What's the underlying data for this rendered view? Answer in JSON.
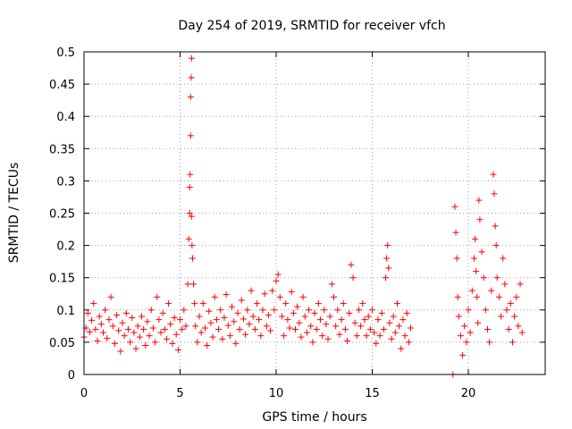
{
  "chart_data": {
    "type": "scatter",
    "title": "Day 254 of 2019, SRMTID for receiver vfch",
    "xlabel": "GPS time / hours",
    "ylabel": "SRMTID / TECUs",
    "xlim": [
      0,
      24
    ],
    "ylim": [
      0,
      0.5
    ],
    "xticks": [
      0,
      5,
      10,
      15,
      20
    ],
    "yticks": [
      0,
      0.05,
      0.1,
      0.15,
      0.2,
      0.25,
      0.3,
      0.35,
      0.4,
      0.45,
      0.5
    ],
    "xtick_labels": [
      "0",
      "5",
      "10",
      "15",
      "20"
    ],
    "ytick_labels": [
      "0",
      "0.05",
      "0.1",
      "0.15",
      "0.2",
      "0.25",
      "0.3",
      "0.35",
      "0.4",
      "0.45",
      "0.5"
    ],
    "grid": true,
    "marker": "+",
    "color": "#ff0000",
    "series": [
      {
        "name": "SRMTID",
        "points": [
          [
            0.0,
            0.058
          ],
          [
            0.1,
            0.072
          ],
          [
            0.2,
            0.095
          ],
          [
            0.3,
            0.066
          ],
          [
            0.4,
            0.084
          ],
          [
            0.5,
            0.11
          ],
          [
            0.6,
            0.07
          ],
          [
            0.7,
            0.052
          ],
          [
            0.8,
            0.09
          ],
          [
            0.9,
            0.078
          ],
          [
            1.0,
            0.065
          ],
          [
            1.1,
            0.1
          ],
          [
            1.2,
            0.056
          ],
          [
            1.3,
            0.085
          ],
          [
            1.4,
            0.12
          ],
          [
            1.5,
            0.075
          ],
          [
            1.6,
            0.048
          ],
          [
            1.7,
            0.092
          ],
          [
            1.8,
            0.068
          ],
          [
            1.9,
            0.036
          ],
          [
            2.0,
            0.08
          ],
          [
            2.1,
            0.06
          ],
          [
            2.2,
            0.095
          ],
          [
            2.3,
            0.07
          ],
          [
            2.4,
            0.05
          ],
          [
            2.5,
            0.088
          ],
          [
            2.6,
            0.065
          ],
          [
            2.7,
            0.04
          ],
          [
            2.8,
            0.075
          ],
          [
            2.9,
            0.058
          ],
          [
            3.0,
            0.09
          ],
          [
            3.1,
            0.07
          ],
          [
            3.2,
            0.045
          ],
          [
            3.3,
            0.082
          ],
          [
            3.4,
            0.06
          ],
          [
            3.5,
            0.1
          ],
          [
            3.6,
            0.072
          ],
          [
            3.7,
            0.05
          ],
          [
            3.8,
            0.12
          ],
          [
            3.9,
            0.085
          ],
          [
            4.0,
            0.065
          ],
          [
            4.1,
            0.095
          ],
          [
            4.2,
            0.07
          ],
          [
            4.3,
            0.055
          ],
          [
            4.4,
            0.11
          ],
          [
            4.5,
            0.078
          ],
          [
            4.6,
            0.048
          ],
          [
            4.7,
            0.088
          ],
          [
            4.8,
            0.062
          ],
          [
            4.9,
            0.038
          ],
          [
            5.0,
            0.085
          ],
          [
            5.1,
            0.07
          ],
          [
            5.2,
            0.1
          ],
          [
            5.3,
            0.075
          ],
          [
            5.4,
            0.14
          ],
          [
            5.45,
            0.21
          ],
          [
            5.5,
            0.25
          ],
          [
            5.5,
            0.29
          ],
          [
            5.52,
            0.31
          ],
          [
            5.55,
            0.37
          ],
          [
            5.55,
            0.43
          ],
          [
            5.58,
            0.46
          ],
          [
            5.6,
            0.49
          ],
          [
            5.6,
            0.245
          ],
          [
            5.62,
            0.2
          ],
          [
            5.65,
            0.18
          ],
          [
            5.7,
            0.14
          ],
          [
            5.75,
            0.11
          ],
          [
            5.8,
            0.075
          ],
          [
            5.9,
            0.05
          ],
          [
            6.0,
            0.09
          ],
          [
            6.1,
            0.065
          ],
          [
            6.2,
            0.11
          ],
          [
            6.3,
            0.072
          ],
          [
            6.4,
            0.045
          ],
          [
            6.5,
            0.098
          ],
          [
            6.6,
            0.08
          ],
          [
            6.7,
            0.058
          ],
          [
            6.8,
            0.12
          ],
          [
            6.9,
            0.085
          ],
          [
            7.0,
            0.07
          ],
          [
            7.1,
            0.1
          ],
          [
            7.2,
            0.055
          ],
          [
            7.3,
            0.088
          ],
          [
            7.4,
            0.124
          ],
          [
            7.5,
            0.076
          ],
          [
            7.6,
            0.06
          ],
          [
            7.7,
            0.105
          ],
          [
            7.8,
            0.082
          ],
          [
            7.9,
            0.048
          ],
          [
            8.0,
            0.095
          ],
          [
            8.1,
            0.07
          ],
          [
            8.2,
            0.115
          ],
          [
            8.3,
            0.086
          ],
          [
            8.4,
            0.062
          ],
          [
            8.5,
            0.1
          ],
          [
            8.6,
            0.078
          ],
          [
            8.7,
            0.13
          ],
          [
            8.8,
            0.09
          ],
          [
            8.9,
            0.07
          ],
          [
            9.0,
            0.11
          ],
          [
            9.1,
            0.085
          ],
          [
            9.2,
            0.06
          ],
          [
            9.3,
            0.1
          ],
          [
            9.4,
            0.125
          ],
          [
            9.5,
            0.075
          ],
          [
            9.6,
            0.092
          ],
          [
            9.7,
            0.068
          ],
          [
            9.8,
            0.13
          ],
          [
            9.9,
            0.1
          ],
          [
            10.0,
            0.145
          ],
          [
            10.1,
            0.155
          ],
          [
            10.2,
            0.12
          ],
          [
            10.3,
            0.09
          ],
          [
            10.4,
            0.06
          ],
          [
            10.5,
            0.11
          ],
          [
            10.6,
            0.085
          ],
          [
            10.7,
            0.072
          ],
          [
            10.8,
            0.128
          ],
          [
            10.9,
            0.095
          ],
          [
            11.0,
            0.07
          ],
          [
            11.1,
            0.105
          ],
          [
            11.2,
            0.08
          ],
          [
            11.3,
            0.058
          ],
          [
            11.4,
            0.12
          ],
          [
            11.5,
            0.09
          ],
          [
            11.6,
            0.065
          ],
          [
            11.7,
            0.1
          ],
          [
            11.8,
            0.075
          ],
          [
            11.9,
            0.05
          ],
          [
            12.0,
            0.095
          ],
          [
            12.1,
            0.07
          ],
          [
            12.2,
            0.11
          ],
          [
            12.3,
            0.085
          ],
          [
            12.4,
            0.06
          ],
          [
            12.5,
            0.1
          ],
          [
            12.6,
            0.078
          ],
          [
            12.7,
            0.055
          ],
          [
            12.8,
            0.09
          ],
          [
            12.9,
            0.14
          ],
          [
            13.0,
            0.12
          ],
          [
            13.1,
            0.075
          ],
          [
            13.2,
            0.1
          ],
          [
            13.3,
            0.062
          ],
          [
            13.4,
            0.085
          ],
          [
            13.5,
            0.11
          ],
          [
            13.6,
            0.07
          ],
          [
            13.7,
            0.052
          ],
          [
            13.8,
            0.095
          ],
          [
            13.9,
            0.17
          ],
          [
            14.0,
            0.15
          ],
          [
            14.1,
            0.08
          ],
          [
            14.2,
            0.06
          ],
          [
            14.3,
            0.1
          ],
          [
            14.4,
            0.075
          ],
          [
            14.5,
            0.11
          ],
          [
            14.6,
            0.085
          ],
          [
            14.7,
            0.06
          ],
          [
            14.8,
            0.09
          ],
          [
            14.9,
            0.07
          ],
          [
            15.0,
            0.1
          ],
          [
            15.1,
            0.065
          ],
          [
            15.2,
            0.048
          ],
          [
            15.3,
            0.085
          ],
          [
            15.4,
            0.06
          ],
          [
            15.5,
            0.095
          ],
          [
            15.6,
            0.07
          ],
          [
            15.7,
            0.15
          ],
          [
            15.75,
            0.18
          ],
          [
            15.8,
            0.2
          ],
          [
            15.85,
            0.165
          ],
          [
            15.9,
            0.08
          ],
          [
            16.0,
            0.055
          ],
          [
            16.1,
            0.09
          ],
          [
            16.2,
            0.065
          ],
          [
            16.3,
            0.11
          ],
          [
            16.4,
            0.075
          ],
          [
            16.5,
            0.04
          ],
          [
            16.6,
            0.085
          ],
          [
            16.7,
            0.06
          ],
          [
            16.8,
            0.095
          ],
          [
            16.9,
            0.05
          ],
          [
            17.0,
            0.072
          ],
          [
            19.2,
            0.0
          ],
          [
            19.3,
            0.26
          ],
          [
            19.35,
            0.22
          ],
          [
            19.4,
            0.18
          ],
          [
            19.45,
            0.12
          ],
          [
            19.5,
            0.09
          ],
          [
            19.6,
            0.06
          ],
          [
            19.7,
            0.03
          ],
          [
            19.8,
            0.075
          ],
          [
            19.9,
            0.05
          ],
          [
            20.0,
            0.1
          ],
          [
            20.1,
            0.065
          ],
          [
            20.2,
            0.13
          ],
          [
            20.3,
            0.18
          ],
          [
            20.35,
            0.21
          ],
          [
            20.4,
            0.16
          ],
          [
            20.45,
            0.12
          ],
          [
            20.5,
            0.08
          ],
          [
            20.55,
            0.27
          ],
          [
            20.6,
            0.24
          ],
          [
            20.7,
            0.19
          ],
          [
            20.8,
            0.15
          ],
          [
            20.9,
            0.1
          ],
          [
            21.0,
            0.07
          ],
          [
            21.1,
            0.05
          ],
          [
            21.2,
            0.13
          ],
          [
            21.3,
            0.31
          ],
          [
            21.35,
            0.28
          ],
          [
            21.4,
            0.23
          ],
          [
            21.45,
            0.2
          ],
          [
            21.5,
            0.15
          ],
          [
            21.6,
            0.12
          ],
          [
            21.7,
            0.09
          ],
          [
            21.8,
            0.18
          ],
          [
            21.9,
            0.14
          ],
          [
            22.0,
            0.1
          ],
          [
            22.1,
            0.07
          ],
          [
            22.2,
            0.11
          ],
          [
            22.3,
            0.05
          ],
          [
            22.4,
            0.09
          ],
          [
            22.5,
            0.12
          ],
          [
            22.6,
            0.075
          ],
          [
            22.7,
            0.14
          ],
          [
            22.8,
            0.065
          ]
        ]
      }
    ]
  }
}
